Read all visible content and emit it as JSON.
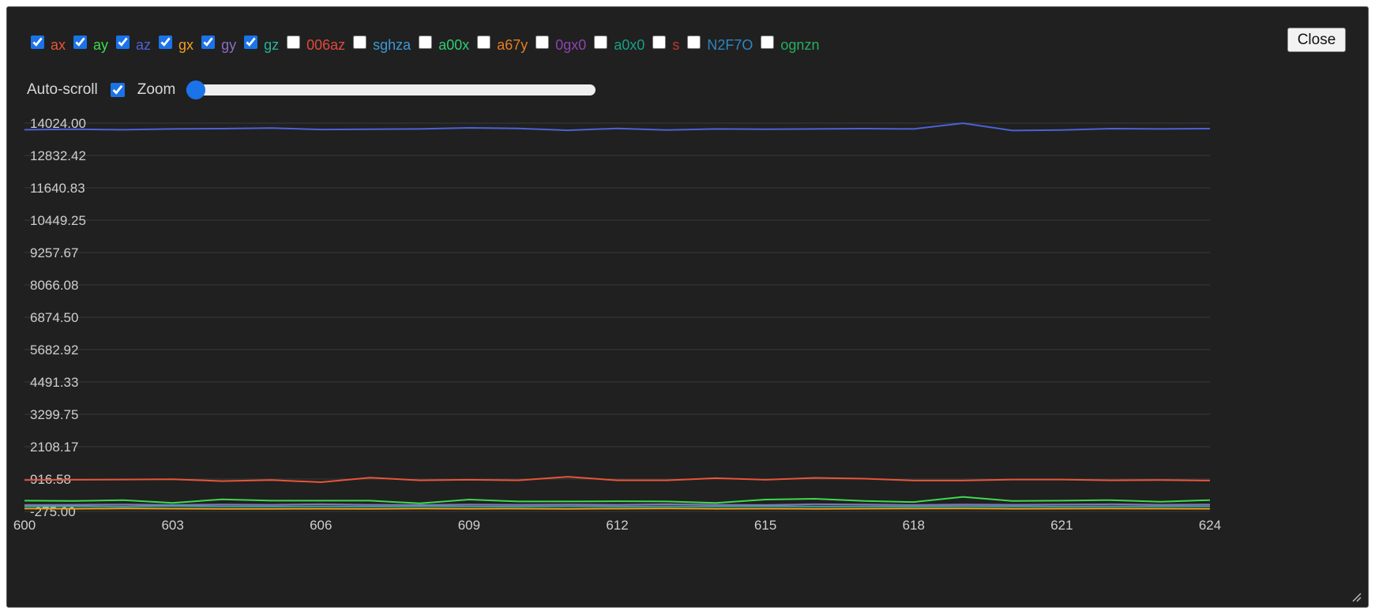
{
  "series_toggles": [
    {
      "label": "ax",
      "checked": true,
      "color": "#e8553a"
    },
    {
      "label": "ay",
      "checked": true,
      "color": "#3ddc4b"
    },
    {
      "label": "az",
      "checked": true,
      "color": "#4b62d6"
    },
    {
      "label": "gx",
      "checked": true,
      "color": "#f0a020"
    },
    {
      "label": "gy",
      "checked": true,
      "color": "#8e6bc0"
    },
    {
      "label": "gz",
      "checked": true,
      "color": "#2ab09a"
    },
    {
      "label": "006az",
      "checked": false,
      "color": "#e04a3a"
    },
    {
      "label": "sghza",
      "checked": false,
      "color": "#3a9ad6"
    },
    {
      "label": "a00x",
      "checked": false,
      "color": "#2ecc71"
    },
    {
      "label": "a67y",
      "checked": false,
      "color": "#e67e22"
    },
    {
      "label": "0gx0",
      "checked": false,
      "color": "#8e44ad"
    },
    {
      "label": "a0x0",
      "checked": false,
      "color": "#16a085"
    },
    {
      "label": "s",
      "checked": false,
      "color": "#c0392b"
    },
    {
      "label": "N2F7O",
      "checked": false,
      "color": "#2e86c1"
    },
    {
      "label": "ognzn",
      "checked": false,
      "color": "#27ae60"
    }
  ],
  "close_label": "Close",
  "autoscroll_label": "Auto-scroll",
  "autoscroll_checked": true,
  "zoom_label": "Zoom",
  "zoom_value": 0,
  "chart_data": {
    "type": "line",
    "title": "",
    "xlabel": "",
    "ylabel": "",
    "grid": true,
    "legend": "none",
    "xlim": [
      600,
      624
    ],
    "ylim": [
      -275.0,
      14024.0
    ],
    "y_ticks": [
      "14024.00",
      "12832.42",
      "11640.83",
      "10449.25",
      "9257.67",
      "8066.08",
      "6874.50",
      "5682.92",
      "4491.33",
      "3299.75",
      "2108.17",
      "916.58",
      "-275.00"
    ],
    "x_ticks": [
      "600",
      "603",
      "606",
      "609",
      "612",
      "615",
      "618",
      "621",
      "624"
    ],
    "x": [
      600,
      601,
      602,
      603,
      604,
      605,
      606,
      607,
      608,
      609,
      610,
      611,
      612,
      613,
      614,
      615,
      616,
      617,
      618,
      619,
      620,
      621,
      622,
      623,
      624
    ],
    "series": [
      {
        "name": "ax",
        "color": "#e8553a",
        "values": [
          880,
          890,
          900,
          910,
          840,
          880,
          800,
          970,
          870,
          890,
          870,
          1000,
          870,
          870,
          950,
          890,
          960,
          930,
          860,
          860,
          900,
          900,
          870,
          880,
          860
        ]
      },
      {
        "name": "ay",
        "color": "#3ddc4b",
        "values": [
          120,
          110,
          140,
          40,
          170,
          120,
          120,
          120,
          20,
          160,
          90,
          90,
          100,
          90,
          40,
          160,
          190,
          110,
          70,
          260,
          110,
          120,
          140,
          80,
          140
        ]
      },
      {
        "name": "az",
        "color": "#4b62d6",
        "values": [
          13780,
          13800,
          13780,
          13810,
          13820,
          13840,
          13790,
          13800,
          13810,
          13850,
          13830,
          13760,
          13830,
          13770,
          13810,
          13800,
          13810,
          13820,
          13810,
          14020,
          13750,
          13770,
          13820,
          13810,
          13820
        ]
      },
      {
        "name": "gx",
        "color": "#f0a020",
        "values": [
          -170,
          -175,
          -168,
          -172,
          -178,
          -182,
          -176,
          -180,
          -170,
          -175,
          -172,
          -178,
          -174,
          -168,
          -176,
          -172,
          -178,
          -174,
          -170,
          -165,
          -176,
          -172,
          -170,
          -174,
          -176
        ]
      },
      {
        "name": "gy",
        "color": "#8e6bc0",
        "values": [
          -40,
          -30,
          -20,
          -40,
          -20,
          -30,
          -10,
          -30,
          -40,
          -20,
          -30,
          -20,
          -30,
          -10,
          -30,
          -40,
          -10,
          -20,
          -40,
          -20,
          -30,
          -20,
          -10,
          -30,
          -20
        ]
      },
      {
        "name": "gz",
        "color": "#2ab09a",
        "values": [
          -90,
          -85,
          -95,
          -80,
          -90,
          -95,
          -88,
          -92,
          -85,
          -90,
          -94,
          -86,
          -92,
          -88,
          -90,
          -85,
          -92,
          -88,
          -94,
          -86,
          -90,
          -92,
          -88,
          -90,
          -86
        ]
      }
    ]
  }
}
